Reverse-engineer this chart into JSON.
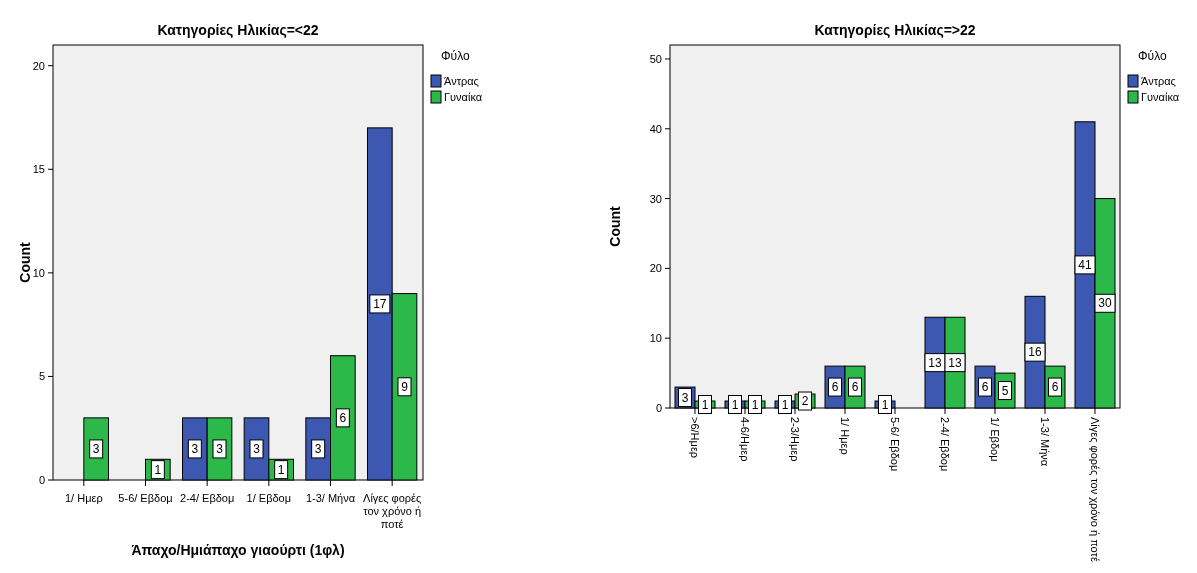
{
  "chart_data": [
    {
      "type": "bar",
      "title": "Κατηγορίες Ηλικίας=<22",
      "xlabel": "Άπαχο/Ημιάπαχο γιαούρτι (1φλ)",
      "ylabel": "Count",
      "legend_title": "Φύλο",
      "legend": "right",
      "data_labels": true,
      "categories": [
        "1/ Ημερ",
        "5-6/ Εβδομ",
        "2-4/ Εβδομ",
        "1/ Εβδομ",
        "1-3/ Μήνα",
        "Λίγες φορές τον χρόνο ή ποτέ"
      ],
      "series": [
        {
          "name": "Άντρας",
          "color": "#3c58b0",
          "values": [
            null,
            null,
            3,
            3,
            3,
            17
          ]
        },
        {
          "name": "Γυναίκα",
          "color": "#2db84a",
          "values": [
            3,
            1,
            3,
            1,
            6,
            9
          ]
        }
      ],
      "ylim": [
        0,
        21
      ],
      "yticks": [
        0,
        5,
        10,
        15,
        20
      ]
    },
    {
      "type": "bar",
      "title": "Κατηγορίες Ηλικίας=>22",
      "ylabel": "Count",
      "legend_title": "Φύλο",
      "legend": "right",
      "data_labels": true,
      "categories": [
        ">6/Ημερ",
        "4-6/Ημερ",
        "2-3/Ημερ",
        "1/ Ημερ",
        "5-6/ Εβδομ",
        "2-4/ Εβδομ",
        "1/ Εβδομ",
        "1-3/ Μήνα",
        "Λίγες φορές τον χρόνο ή ποτέ"
      ],
      "series": [
        {
          "name": "Άντρας",
          "color": "#3c58b0",
          "values": [
            3,
            1,
            1,
            6,
            1,
            13,
            6,
            16,
            41
          ]
        },
        {
          "name": "Γυναίκα",
          "color": "#2db84a",
          "values": [
            1,
            1,
            2,
            6,
            null,
            13,
            5,
            6,
            30
          ]
        }
      ],
      "ylim": [
        0,
        52
      ],
      "yticks": [
        0,
        10,
        20,
        30,
        40,
        50
      ]
    }
  ]
}
